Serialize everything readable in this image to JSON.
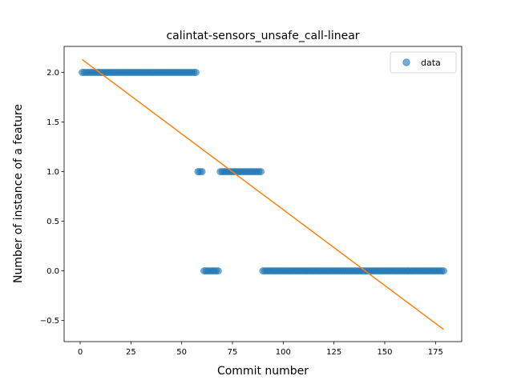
{
  "chart_data": {
    "type": "scatter",
    "title": "calintat-sensors_unsafe_call-linear",
    "xlabel": "Commit number",
    "ylabel": "Number of instance of a feature",
    "xlim": [
      -7.9,
      187.9
    ],
    "ylim": [
      -0.7125,
      2.2625
    ],
    "xticks": [
      0,
      25,
      50,
      75,
      100,
      125,
      150,
      175
    ],
    "yticks": [
      -0.5,
      0.0,
      0.5,
      1.0,
      1.5,
      2.0
    ],
    "xtick_labels": [
      "0",
      "25",
      "50",
      "75",
      "100",
      "125",
      "150",
      "175"
    ],
    "ytick_labels": [
      "−0.5",
      "0.0",
      "0.5",
      "1.0",
      "1.5",
      "2.0"
    ],
    "legend": {
      "position": "top-right",
      "entries": [
        "data"
      ]
    },
    "series": [
      {
        "name": "data",
        "kind": "scatter",
        "color": "#1f77b4",
        "segments": [
          {
            "x_start": 1,
            "x_end": 57,
            "y": 2
          },
          {
            "x_start": 58,
            "x_end": 60,
            "y": 1
          },
          {
            "x_start": 61,
            "x_end": 68,
            "y": 0
          },
          {
            "x_start": 69,
            "x_end": 89,
            "y": 1
          },
          {
            "x_start": 90,
            "x_end": 179,
            "y": 0
          }
        ]
      },
      {
        "kind": "line",
        "color": "#ff7f0e",
        "x": [
          1,
          179
        ],
        "y": [
          2.13,
          -0.59
        ]
      }
    ]
  }
}
